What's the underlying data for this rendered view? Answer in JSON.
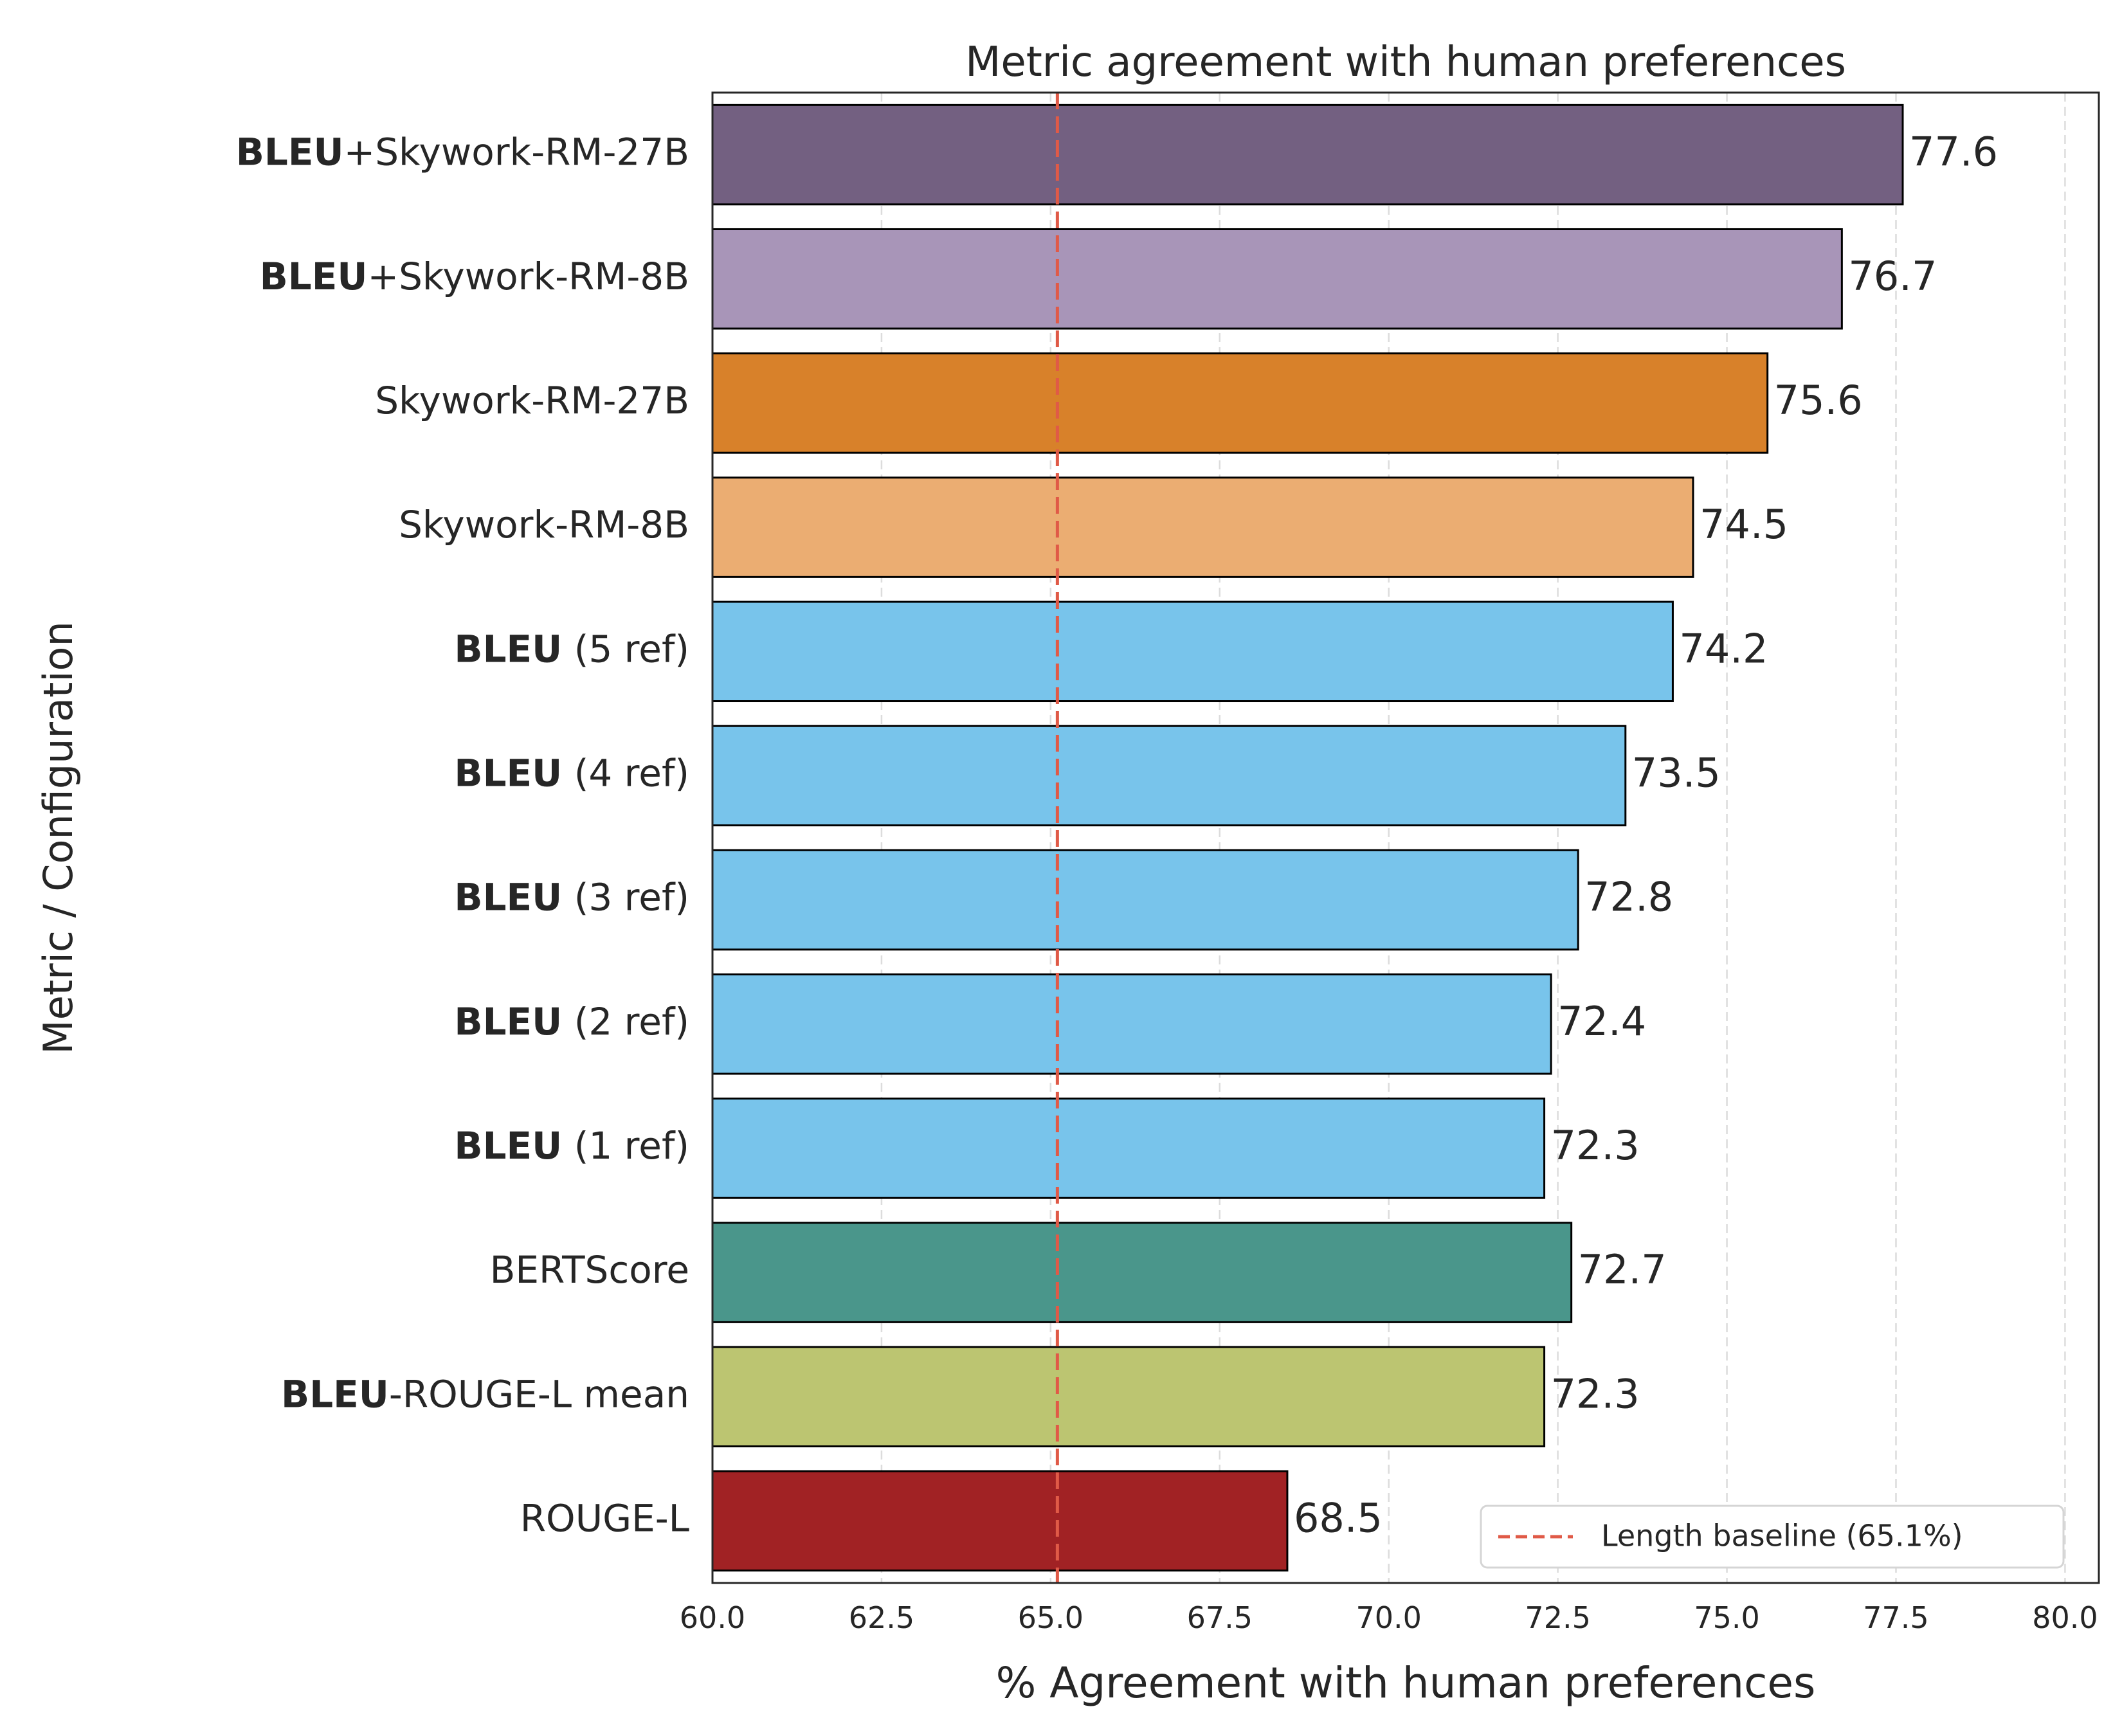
{
  "chart_data": {
    "type": "bar",
    "orientation": "horizontal",
    "title": "Metric agreement with human preferences",
    "xlabel": "% Agreement with human preferences",
    "ylabel": "Metric / Configuration",
    "xlim": [
      60.0,
      80.5
    ],
    "xticks": [
      "60.0",
      "62.5",
      "65.0",
      "67.5",
      "70.0",
      "72.5",
      "75.0",
      "77.5",
      "80.0"
    ],
    "grid": "vertical dashed",
    "categories": [
      {
        "bold": "BLEU",
        "rest": "+Skywork-RM-27B"
      },
      {
        "bold": "BLEU",
        "rest": "+Skywork-RM-8B"
      },
      {
        "bold": "",
        "rest": "Skywork-RM-27B"
      },
      {
        "bold": "",
        "rest": "Skywork-RM-8B"
      },
      {
        "bold": "BLEU",
        "rest": " (5 ref)"
      },
      {
        "bold": "BLEU",
        "rest": " (4 ref)"
      },
      {
        "bold": "BLEU",
        "rest": " (3 ref)"
      },
      {
        "bold": "BLEU",
        "rest": " (2 ref)"
      },
      {
        "bold": "BLEU",
        "rest": " (1 ref)"
      },
      {
        "bold": "",
        "rest": "BERTScore"
      },
      {
        "bold": "BLEU",
        "rest": "-ROUGE-L mean"
      },
      {
        "bold": "",
        "rest": "ROUGE-L"
      }
    ],
    "values": [
      77.6,
      76.7,
      75.6,
      74.5,
      74.2,
      73.5,
      72.8,
      72.4,
      72.3,
      72.7,
      72.3,
      68.5
    ],
    "data_labels": [
      "77.6",
      "76.7",
      "75.6",
      "74.5",
      "74.2",
      "73.5",
      "72.8",
      "72.4",
      "72.3",
      "72.7",
      "72.3",
      "68.5"
    ],
    "colors": [
      "#736081",
      "#a895b8",
      "#d8812a",
      "#ebad72",
      "#78c4eb",
      "#78c4eb",
      "#78c4eb",
      "#78c4eb",
      "#78c4eb",
      "#4a968b",
      "#bcc571",
      "#a12224"
    ],
    "reference_line": {
      "value": 65.1,
      "label": "Length baseline (65.1%)",
      "color": "#e05a47",
      "style": "dashed"
    },
    "legend": {
      "placement": "lower-right",
      "entries": [
        "Length baseline (65.1%)"
      ]
    }
  }
}
